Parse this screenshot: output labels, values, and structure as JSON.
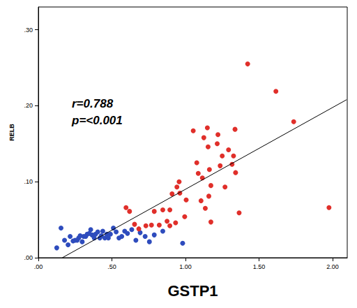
{
  "chart_data": {
    "type": "scatter",
    "x_label": "GSTP1",
    "y_label": "RELB",
    "annotations": [
      "r=0.788",
      "p=<0.001"
    ],
    "xlim": [
      0,
      2.1
    ],
    "ylim": [
      0,
      0.33
    ],
    "xticks": [
      {
        "value": 0,
        "label": ".00"
      },
      {
        "value": 0.5,
        "label": ".50"
      },
      {
        "value": 1,
        "label": "1.00"
      },
      {
        "value": 1.5,
        "label": "1.50"
      },
      {
        "value": 2,
        "label": "2.00"
      }
    ],
    "yticks": [
      {
        "value": 0,
        "label": ".00"
      },
      {
        "value": 0.1,
        "label": ".10"
      },
      {
        "value": 0.2,
        "label": ".20"
      },
      {
        "value": 0.3,
        "label": ".30"
      }
    ],
    "grid": false,
    "series": [
      {
        "color": "#2e4cbd",
        "marker": "circle",
        "x": [
          0.125,
          0.154,
          0.178,
          0.202,
          0.216,
          0.236,
          0.25,
          0.264,
          0.274,
          0.284,
          0.298,
          0.308,
          0.322,
          0.332,
          0.346,
          0.356,
          0.365,
          0.38,
          0.389,
          0.404,
          0.418,
          0.428,
          0.438,
          0.452,
          0.466,
          0.476,
          0.49,
          0.51,
          0.529,
          0.548,
          0.567,
          0.587,
          0.606,
          0.635,
          0.663,
          0.692,
          0.726,
          0.755,
          0.788,
          0.846,
          0.981
        ],
        "values": [
          0.013,
          0.039,
          0.023,
          0.017,
          0.028,
          0.022,
          0.023,
          0.023,
          0.026,
          0.029,
          0.021,
          0.028,
          0.028,
          0.031,
          0.032,
          0.037,
          0.03,
          0.026,
          0.031,
          0.034,
          0.026,
          0.029,
          0.035,
          0.026,
          0.031,
          0.026,
          0.031,
          0.039,
          0.034,
          0.026,
          0.028,
          0.035,
          0.032,
          0.037,
          0.023,
          0.033,
          0.028,
          0.021,
          0.03,
          0.035,
          0.019
        ]
      },
      {
        "color": "#e02f2a",
        "marker": "circle",
        "x": [
          0.596,
          0.62,
          0.654,
          0.683,
          0.731,
          0.769,
          0.788,
          0.822,
          0.846,
          0.875,
          0.894,
          0.909,
          0.894,
          0.942,
          0.957,
          0.962,
          0.933,
          0.995,
          1.005,
          1.053,
          1.077,
          1.087,
          1.106,
          1.115,
          1.125,
          1.135,
          1.149,
          1.154,
          1.159,
          1.163,
          1.173,
          1.173,
          1.216,
          1.221,
          1.236,
          1.25,
          1.269,
          1.293,
          1.317,
          1.337,
          1.327,
          1.341,
          1.365,
          1.423,
          1.615,
          1.736,
          1.976
        ],
        "values": [
          0.066,
          0.061,
          0.044,
          0.038,
          0.042,
          0.043,
          0.061,
          0.043,
          0.063,
          0.048,
          0.042,
          0.084,
          0.063,
          0.093,
          0.1,
          0.085,
          0.046,
          0.054,
          0.076,
          0.167,
          0.125,
          0.111,
          0.075,
          0.105,
          0.158,
          0.065,
          0.171,
          0.146,
          0.081,
          0.116,
          0.095,
          0.047,
          0.15,
          0.162,
          0.121,
          0.134,
          0.093,
          0.142,
          0.123,
          0.169,
          0.134,
          0.112,
          0.059,
          0.255,
          0.219,
          0.179,
          0.066
        ]
      },
      {
        "type": "line",
        "color": "#000000",
        "line_style": "solid",
        "x": [
          0.163,
          2.096
        ],
        "values": [
          0,
          0.208
        ]
      }
    ]
  }
}
